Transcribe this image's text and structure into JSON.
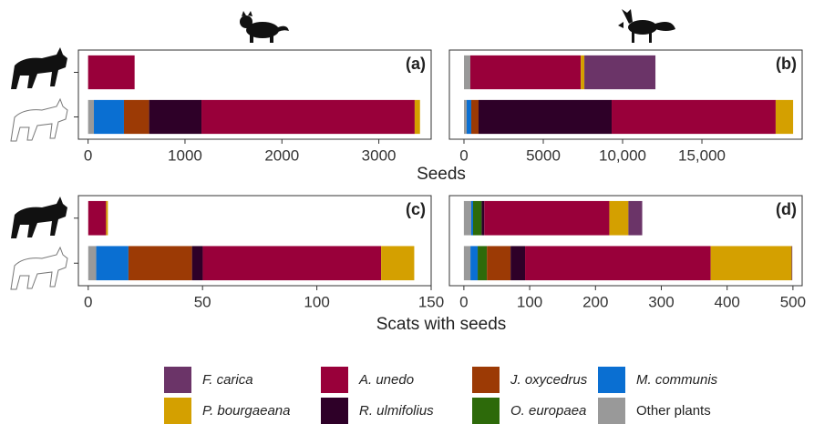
{
  "chart_data": [
    {
      "type": "bar",
      "panel_label": "(a)",
      "categories": [
        null,
        null
      ],
      "series": [
        {
          "name": "Other plants",
          "color": "#999999",
          "values": [
            0,
            60
          ]
        },
        {
          "name": "M. communis",
          "color": "#0a6fd2",
          "values": [
            0,
            310
          ]
        },
        {
          "name": "O. europaea",
          "color": "#2d6a0a",
          "values": [
            0,
            0
          ]
        },
        {
          "name": "J. oxycedrus",
          "color": "#9c3a05",
          "values": [
            0,
            260
          ]
        },
        {
          "name": "R. ulmifolius",
          "color": "#2e0028",
          "values": [
            0,
            540
          ]
        },
        {
          "name": "A. unedo",
          "color": "#99003a",
          "values": [
            480,
            2200
          ]
        },
        {
          "name": "P. bourgaeana",
          "color": "#d4a000",
          "values": [
            0,
            55
          ]
        },
        {
          "name": "F. carica",
          "color": "#6b3468",
          "values": [
            0,
            0
          ]
        }
      ],
      "xlim": [
        -100,
        3540
      ],
      "xticks": [
        0,
        1000,
        2000,
        3000
      ],
      "xlabel": "Seeds"
    },
    {
      "type": "bar",
      "panel_label": "(b)",
      "categories": [
        null,
        null
      ],
      "series": [
        {
          "name": "Other plants",
          "color": "#999999",
          "values": [
            400,
            170
          ]
        },
        {
          "name": "M. communis",
          "color": "#0a6fd2",
          "values": [
            0,
            290
          ]
        },
        {
          "name": "O. europaea",
          "color": "#2d6a0a",
          "values": [
            0,
            0
          ]
        },
        {
          "name": "J. oxycedrus",
          "color": "#9c3a05",
          "values": [
            0,
            460
          ]
        },
        {
          "name": "R. ulmifolius",
          "color": "#2e0028",
          "values": [
            0,
            8390
          ]
        },
        {
          "name": "A. unedo",
          "color": "#99003a",
          "values": [
            6960,
            10340
          ]
        },
        {
          "name": "P. bourgaeana",
          "color": "#d4a000",
          "values": [
            230,
            1100
          ]
        },
        {
          "name": "F. carica",
          "color": "#6b3468",
          "values": [
            4480,
            0
          ]
        }
      ],
      "xlim": [
        -920,
        21320
      ],
      "xticks": [
        0,
        5000,
        {
          "value": 10000,
          "label": "10,000"
        },
        {
          "value": 15000,
          "label": "15,000"
        }
      ]
    },
    {
      "type": "bar",
      "panel_label": "(c)",
      "categories": [
        null,
        null
      ],
      "series": [
        {
          "name": "Other plants",
          "color": "#999999",
          "values": [
            0,
            3.5
          ]
        },
        {
          "name": "M. communis",
          "color": "#0a6fd2",
          "values": [
            0,
            14.1
          ]
        },
        {
          "name": "O. europaea",
          "color": "#2d6a0a",
          "values": [
            0,
            0
          ]
        },
        {
          "name": "J. oxycedrus",
          "color": "#9c3a05",
          "values": [
            0,
            27.8
          ]
        },
        {
          "name": "R. ulmifolius",
          "color": "#2e0028",
          "values": [
            0,
            4.7
          ]
        },
        {
          "name": "A. unedo",
          "color": "#99003a",
          "values": [
            7.8,
            78
          ]
        },
        {
          "name": "P. bourgaeana",
          "color": "#d4a000",
          "values": [
            0.8,
            14.5
          ]
        },
        {
          "name": "F. carica",
          "color": "#6b3468",
          "values": [
            0,
            0
          ]
        }
      ],
      "xlim": [
        -4.3,
        150
      ],
      "xticks": [
        0,
        50,
        100,
        150
      ],
      "xlabel": "Scats with seeds"
    },
    {
      "type": "bar",
      "panel_label": "(d)",
      "categories": [
        null,
        null
      ],
      "series": [
        {
          "name": "Other plants",
          "color": "#999999",
          "values": [
            11,
            10
          ]
        },
        {
          "name": "M. communis",
          "color": "#0a6fd2",
          "values": [
            3,
            11
          ]
        },
        {
          "name": "O. europaea",
          "color": "#2d6a0a",
          "values": [
            13,
            14
          ]
        },
        {
          "name": "J. oxycedrus",
          "color": "#9c3a05",
          "values": [
            0,
            36
          ]
        },
        {
          "name": "R. ulmifolius",
          "color": "#2e0028",
          "values": [
            4,
            22
          ]
        },
        {
          "name": "A. unedo",
          "color": "#99003a",
          "values": [
            190,
            282
          ]
        },
        {
          "name": "P. bourgaeana",
          "color": "#d4a000",
          "values": [
            29,
            123
          ]
        },
        {
          "name": "F. carica",
          "color": "#6b3468",
          "values": [
            21,
            1
          ]
        }
      ],
      "xlim": [
        -22,
        514
      ],
      "xticks": [
        0,
        100,
        200,
        300,
        400,
        500
      ]
    }
  ]
}
